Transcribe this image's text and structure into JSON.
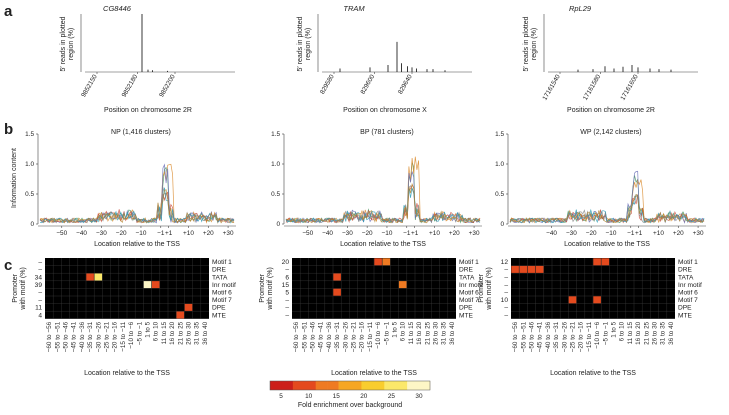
{
  "panel_a": {
    "letter": "a",
    "ylabel_lines": [
      "5′ reads in plotted",
      "region (%)"
    ],
    "plots": [
      {
        "gene": "CG8446",
        "xlabel": "Position on chromosome 2R",
        "ticks": [
          "9852150",
          "9852180",
          "9852200"
        ],
        "peaks": [
          {
            "x": 0.38,
            "h": 1.0
          },
          {
            "x": 0.42,
            "h": 0.04
          },
          {
            "x": 0.45,
            "h": 0.03
          },
          {
            "x": 0.55,
            "h": 0.02
          }
        ]
      },
      {
        "gene": "TRAM",
        "xlabel": "Position on chromosome X",
        "ticks": [
          "829580",
          "829600",
          "829640"
        ],
        "peaks": [
          {
            "x": 0.12,
            "h": 0.06
          },
          {
            "x": 0.32,
            "h": 0.08
          },
          {
            "x": 0.44,
            "h": 0.12
          },
          {
            "x": 0.5,
            "h": 0.52
          },
          {
            "x": 0.53,
            "h": 0.15
          },
          {
            "x": 0.57,
            "h": 0.1
          },
          {
            "x": 0.6,
            "h": 0.08
          },
          {
            "x": 0.63,
            "h": 0.06
          },
          {
            "x": 0.7,
            "h": 0.05
          },
          {
            "x": 0.74,
            "h": 0.05
          },
          {
            "x": 0.82,
            "h": 0.03
          }
        ]
      },
      {
        "gene": "RpL29",
        "xlabel": "Position on chromosome 2R",
        "ticks": [
          "17161540",
          "17161580",
          "17161600"
        ],
        "peaks": [
          {
            "x": 0.2,
            "h": 0.04
          },
          {
            "x": 0.3,
            "h": 0.05
          },
          {
            "x": 0.38,
            "h": 0.1
          },
          {
            "x": 0.44,
            "h": 0.06
          },
          {
            "x": 0.5,
            "h": 0.09
          },
          {
            "x": 0.56,
            "h": 0.12
          },
          {
            "x": 0.6,
            "h": 0.08
          },
          {
            "x": 0.68,
            "h": 0.06
          },
          {
            "x": 0.74,
            "h": 0.05
          },
          {
            "x": 0.82,
            "h": 0.04
          }
        ]
      }
    ]
  },
  "panel_b": {
    "letter": "b",
    "ylabel": "Information content",
    "xlabel": "Location relative to the TSS",
    "yticks": [
      "0",
      "0.5",
      "1.0",
      "1.5"
    ],
    "xticks": [
      "−50",
      "−40",
      "−30",
      "−20",
      "−10",
      "−1",
      "+1",
      "+10",
      "+20",
      "+30"
    ],
    "plots": [
      {
        "title": "NP (1,416 clusters)",
        "main_peak": 1.0,
        "side_peak": 0.75
      },
      {
        "title": "BP (781 clusters)",
        "main_peak": 1.05,
        "side_peak": 0.8
      },
      {
        "title": "WP (2,142 clusters)",
        "main_peak": 0.8,
        "side_peak": 0.45
      }
    ]
  },
  "panel_c": {
    "letter": "c",
    "ylabel_lines": [
      "Promoter",
      "with motif (%)"
    ],
    "xlabel": "Location relative to the TSS",
    "motifs": [
      "Motif 1",
      "DRE",
      "TATA",
      "Inr motif",
      "Motif 6",
      "Motif 7",
      "DPE",
      "MTE"
    ],
    "columns": [
      "−60 to −56",
      "−55 to −51",
      "−50 to −46",
      "−45 to −41",
      "−40 to −36",
      "−35 to −31",
      "−30 to −26",
      "−25 to −21",
      "−20 to −16",
      "−15 to −11",
      "−10 to −6",
      "−5 to −1",
      "1 to 5",
      "6 to 10",
      "11 to 15",
      "16 to 20",
      "21 to 25",
      "26 to 30",
      "31 to 35",
      "36 to 40"
    ],
    "heatmaps": [
      {
        "counts": [
          "–",
          "–",
          "34",
          "39",
          "–",
          "–",
          "11",
          "4"
        ],
        "cells": [
          {
            "row": 2,
            "col": 5,
            "v": 9
          },
          {
            "row": 2,
            "col": 6,
            "v": 28
          },
          {
            "row": 3,
            "col": 12,
            "v": 32
          },
          {
            "row": 3,
            "col": 13,
            "v": 7
          },
          {
            "row": 6,
            "col": 17,
            "v": 7
          },
          {
            "row": 7,
            "col": 16,
            "v": 6
          }
        ]
      },
      {
        "counts": [
          "20",
          "–",
          "6",
          "15",
          "5",
          "–",
          "–",
          "–"
        ],
        "cells": [
          {
            "row": 0,
            "col": 10,
            "v": 7
          },
          {
            "row": 0,
            "col": 11,
            "v": 11
          },
          {
            "row": 2,
            "col": 5,
            "v": 6
          },
          {
            "row": 3,
            "col": 13,
            "v": 13
          },
          {
            "row": 4,
            "col": 5,
            "v": 6
          }
        ]
      },
      {
        "counts": [
          "12",
          "–",
          "–",
          "–",
          "–",
          "10",
          "–",
          "–"
        ],
        "cells": [
          {
            "row": 0,
            "col": 10,
            "v": 7
          },
          {
            "row": 0,
            "col": 11,
            "v": 7
          },
          {
            "row": 1,
            "col": 0,
            "v": 6
          },
          {
            "row": 1,
            "col": 1,
            "v": 6
          },
          {
            "row": 1,
            "col": 2,
            "v": 6
          },
          {
            "row": 1,
            "col": 3,
            "v": 6
          },
          {
            "row": 5,
            "col": 7,
            "v": 6
          },
          {
            "row": 5,
            "col": 10,
            "v": 6
          }
        ]
      }
    ],
    "colorbar": {
      "label": "Fold enrichment over background",
      "ticks": [
        "5",
        "10",
        "15",
        "20",
        "25",
        "30"
      ],
      "min": 3,
      "max": 32
    }
  }
}
